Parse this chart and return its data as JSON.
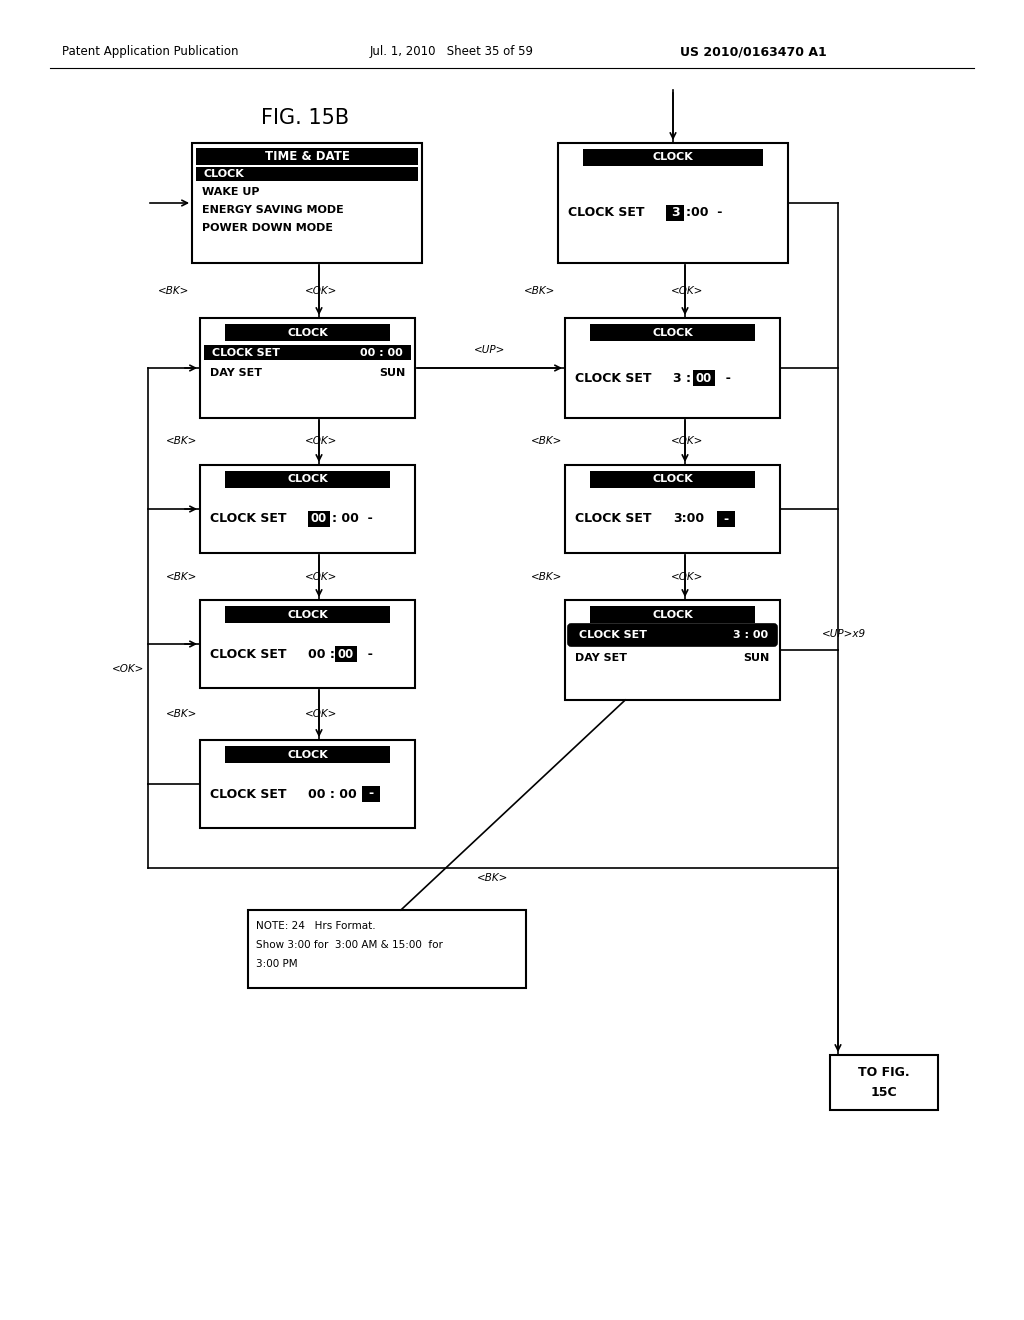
{
  "title": "FIG. 15B",
  "header_left": "Patent Application Publication",
  "header_mid": "Jul. 1, 2010   Sheet 35 of 59",
  "header_right": "US 2010/0163470 A1",
  "bg_color": "#ffffff",
  "note_text_1": "NOTE: 24   Hrs Format.",
  "note_text_2": "Show 3:00 for  3:00 AM & 15:00  for",
  "note_text_3": "3:00 PM",
  "tofig_line1": "TO FIG.",
  "tofig_line2": "15C"
}
